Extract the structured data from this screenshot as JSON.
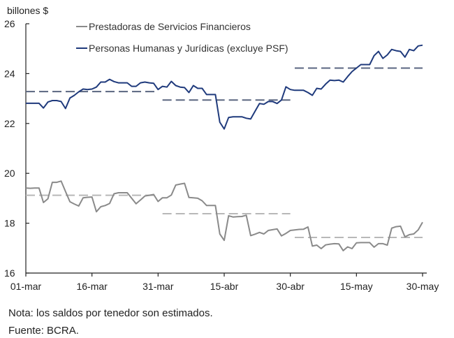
{
  "chart_data": {
    "type": "line",
    "ylabel": "billones $",
    "ylim": [
      16,
      26
    ],
    "yticks": [
      "16",
      "18",
      "20",
      "22",
      "24",
      "26"
    ],
    "xticks": [
      "01-mar",
      "16-mar",
      "31-mar",
      "15-abr",
      "30-abr",
      "15-may",
      "30-may"
    ],
    "dates": [
      "01-mar",
      "02-mar",
      "03-mar",
      "04-mar",
      "05-mar",
      "06-mar",
      "07-mar",
      "08-mar",
      "09-mar",
      "10-mar",
      "11-mar",
      "12-mar",
      "13-mar",
      "14-mar",
      "15-mar",
      "16-mar",
      "17-mar",
      "18-mar",
      "19-mar",
      "20-mar",
      "21-mar",
      "22-mar",
      "23-mar",
      "24-mar",
      "25-mar",
      "26-mar",
      "27-mar",
      "28-mar",
      "29-mar",
      "30-mar",
      "31-mar",
      "01-abr",
      "02-abr",
      "03-abr",
      "04-abr",
      "05-abr",
      "06-abr",
      "07-abr",
      "08-abr",
      "09-abr",
      "10-abr",
      "11-abr",
      "12-abr",
      "13-abr",
      "14-abr",
      "15-abr",
      "16-abr",
      "17-abr",
      "18-abr",
      "19-abr",
      "20-abr",
      "21-abr",
      "22-abr",
      "23-abr",
      "24-abr",
      "25-abr",
      "26-abr",
      "27-abr",
      "28-abr",
      "29-abr",
      "30-abr",
      "01-may",
      "02-may",
      "03-may",
      "04-may",
      "05-may",
      "06-may",
      "07-may",
      "08-may",
      "09-may",
      "10-may",
      "11-may",
      "12-may",
      "13-may",
      "14-may",
      "15-may",
      "16-may",
      "17-may",
      "18-may",
      "19-may",
      "20-may",
      "21-may",
      "22-may",
      "23-may",
      "24-may",
      "25-may",
      "26-may",
      "27-may",
      "28-may",
      "29-may",
      "30-may"
    ],
    "series": [
      {
        "name": "Prestadoras de Servicios Financieros",
        "color": "#8a8a8a",
        "values": [
          19.41,
          19.4,
          19.41,
          19.41,
          18.83,
          18.98,
          19.64,
          19.64,
          19.69,
          19.27,
          18.86,
          18.77,
          18.69,
          19.02,
          19.04,
          19.05,
          18.46,
          18.66,
          18.71,
          18.79,
          19.18,
          19.22,
          19.22,
          19.22,
          19.0,
          18.78,
          18.93,
          19.09,
          19.12,
          19.15,
          18.87,
          19.02,
          19.02,
          19.13,
          19.53,
          19.57,
          19.6,
          19.03,
          19.02,
          19.0,
          18.9,
          18.71,
          18.71,
          18.71,
          17.57,
          17.31,
          18.3,
          18.25,
          18.26,
          18.27,
          18.32,
          17.5,
          17.56,
          17.63,
          17.57,
          17.71,
          17.74,
          17.77,
          17.49,
          17.59,
          17.71,
          17.73,
          17.75,
          17.76,
          17.85,
          17.08,
          17.12,
          16.98,
          17.13,
          17.16,
          17.18,
          17.17,
          16.9,
          17.05,
          16.98,
          17.21,
          17.22,
          17.22,
          17.22,
          17.04,
          17.18,
          17.18,
          17.12,
          17.8,
          17.86,
          17.88,
          17.45,
          17.54,
          17.57,
          17.73,
          18.04
        ],
        "period_averages": [
          {
            "from": "01-mar",
            "to": "31-mar",
            "value": 19.12
          },
          {
            "from": "01-abr",
            "to": "30-abr",
            "value": 18.38
          },
          {
            "from": "01-may",
            "to": "30-may",
            "value": 17.43
          }
        ],
        "average_color": "#b8b8b8"
      },
      {
        "name": "Personas Humanas y Jurídicas (excluye PSF)",
        "color": "#1f3a7c",
        "values": [
          22.81,
          22.81,
          22.81,
          22.81,
          22.62,
          22.86,
          22.92,
          22.92,
          22.88,
          22.6,
          23.02,
          23.13,
          23.27,
          23.38,
          23.36,
          23.38,
          23.46,
          23.66,
          23.66,
          23.77,
          23.68,
          23.63,
          23.63,
          23.63,
          23.49,
          23.49,
          23.63,
          23.66,
          23.63,
          23.61,
          23.36,
          23.49,
          23.46,
          23.69,
          23.52,
          23.46,
          23.44,
          23.24,
          23.52,
          23.41,
          23.41,
          23.16,
          23.16,
          23.16,
          22.05,
          21.78,
          22.24,
          22.27,
          22.27,
          22.27,
          22.21,
          22.18,
          22.49,
          22.8,
          22.77,
          22.88,
          22.88,
          22.8,
          22.94,
          23.47,
          23.36,
          23.33,
          23.33,
          23.33,
          23.24,
          23.13,
          23.41,
          23.38,
          23.58,
          23.74,
          23.72,
          23.74,
          23.66,
          23.88,
          24.08,
          24.22,
          24.36,
          24.36,
          24.36,
          24.72,
          24.89,
          24.61,
          24.75,
          24.97,
          24.92,
          24.89,
          24.66,
          24.97,
          24.92,
          25.11,
          25.14
        ],
        "period_averages": [
          {
            "from": "01-mar",
            "to": "31-mar",
            "value": 23.28
          },
          {
            "from": "01-abr",
            "to": "30-abr",
            "value": 22.94
          },
          {
            "from": "01-may",
            "to": "30-may",
            "value": 24.22
          }
        ],
        "average_color": "#5a6680"
      }
    ],
    "legend_position": "top-center",
    "grid": false
  },
  "notes": {
    "nota": "Nota: los saldos por tenedor son estimados.",
    "fuente": "Fuente: BCRA."
  }
}
